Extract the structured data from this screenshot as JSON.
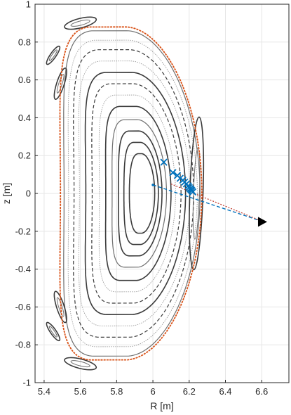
{
  "chart_data": {
    "type": "scatter",
    "xlabel": "R [m]",
    "ylabel": "z [m]",
    "xlim": [
      5.35,
      6.75
    ],
    "ylim": [
      -1,
      1
    ],
    "x_ticks": [
      5.4,
      5.6,
      5.8,
      6.0,
      6.2,
      6.4,
      6.6
    ],
    "x_tick_labels": [
      "5.4",
      "5.6",
      "5.8",
      "6",
      "6.2",
      "6.4",
      "6.6"
    ],
    "y_ticks": [
      -1,
      -0.8,
      -0.6,
      -0.4,
      -0.2,
      0,
      0.2,
      0.4,
      0.6,
      0.8,
      1
    ],
    "y_tick_labels": [
      "-1",
      "-0.8",
      "-0.6",
      "-0.4",
      "-0.2",
      "0",
      "0.2",
      "0.4",
      "0.6",
      "0.8",
      "1"
    ],
    "grid": true,
    "colors": {
      "surface_dark": "#3a3a3a",
      "surface_mid": "#6e6e6e",
      "surface_light": "#9a9a9a",
      "lcfs": "#d95319",
      "marker": "#0072bd",
      "arrow": "#000000"
    },
    "flux_surfaces": [
      {
        "R0": 5.94,
        "z0": 0.0,
        "a": 0.07,
        "b": 0.21,
        "t": 0.02,
        "style": "dark"
      },
      {
        "R0": 5.935,
        "z0": 0.0,
        "a": 0.095,
        "b": 0.27,
        "t": 0.04,
        "style": "dark"
      },
      {
        "R0": 5.93,
        "z0": 0.0,
        "a": 0.12,
        "b": 0.33,
        "t": 0.06,
        "style": "dark"
      },
      {
        "R0": 5.925,
        "z0": 0.0,
        "a": 0.15,
        "b": 0.39,
        "t": 0.08,
        "style": "mid"
      },
      {
        "R0": 5.92,
        "z0": 0.0,
        "a": 0.18,
        "b": 0.46,
        "t": 0.1,
        "style": "dark"
      },
      {
        "R0": 5.915,
        "z0": 0.0,
        "a": 0.21,
        "b": 0.52,
        "t": 0.12,
        "style": "light"
      },
      {
        "R0": 5.91,
        "z0": 0.0,
        "a": 0.245,
        "b": 0.58,
        "t": 0.14,
        "style": "dashed"
      },
      {
        "R0": 5.905,
        "z0": 0.0,
        "a": 0.275,
        "b": 0.64,
        "t": 0.16,
        "style": "dark"
      },
      {
        "R0": 5.9,
        "z0": 0.0,
        "a": 0.305,
        "b": 0.7,
        "t": 0.18,
        "style": "light"
      },
      {
        "R0": 5.895,
        "z0": 0.0,
        "a": 0.33,
        "b": 0.76,
        "t": 0.19,
        "style": "dashed"
      },
      {
        "R0": 5.89,
        "z0": 0.0,
        "a": 0.355,
        "b": 0.81,
        "t": 0.2,
        "style": "light"
      },
      {
        "R0": 5.885,
        "z0": 0.0,
        "a": 0.375,
        "b": 0.86,
        "t": 0.21,
        "style": "mid"
      }
    ],
    "lcfs": {
      "R0": 5.88,
      "z0": 0.0,
      "a": 0.39,
      "b": 0.88,
      "t": 0.22
    },
    "islands": [
      {
        "R": 5.6,
        "z": 0.9,
        "rl": 0.09,
        "rs": 0.025,
        "angle": -14
      },
      {
        "R": 5.6,
        "z": -0.9,
        "rl": 0.09,
        "rs": 0.025,
        "angle": 14
      },
      {
        "R": 5.49,
        "z": 0.58,
        "rl": 0.09,
        "rs": 0.02,
        "angle": -72
      },
      {
        "R": 5.49,
        "z": -0.6,
        "rl": 0.09,
        "rs": 0.02,
        "angle": 72
      },
      {
        "R": 6.24,
        "z": 0.0,
        "rl": 0.42,
        "rs": 0.035,
        "angle": 92
      },
      {
        "R": 5.45,
        "z": -0.73,
        "rl": 0.06,
        "rs": 0.015,
        "angle": 55
      },
      {
        "R": 5.45,
        "z": 0.73,
        "rl": 0.06,
        "rs": 0.015,
        "angle": -55
      }
    ],
    "crosses": [
      [
        6.06,
        0.165
      ],
      [
        6.11,
        0.11
      ],
      [
        6.135,
        0.095
      ],
      [
        6.15,
        0.08
      ],
      [
        6.165,
        0.07
      ],
      [
        6.175,
        0.06
      ],
      [
        6.185,
        0.05
      ],
      [
        6.195,
        0.04
      ],
      [
        6.2,
        0.032
      ],
      [
        6.205,
        0.025
      ],
      [
        6.21,
        0.02
      ],
      [
        6.215,
        0.015
      ],
      [
        6.22,
        0.008
      ]
    ],
    "sight_line_1": {
      "from": [
        6.0,
        0.045
      ],
      "to": [
        6.61,
        -0.15
      ]
    },
    "sight_line_2": {
      "from": [
        6.1,
        0.05
      ],
      "to": [
        6.61,
        -0.15
      ]
    },
    "arrow_tip": [
      6.63,
      -0.15
    ]
  }
}
